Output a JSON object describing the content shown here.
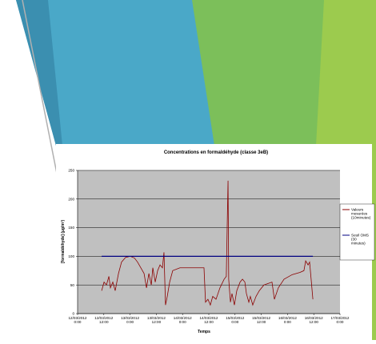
{
  "chart_data": {
    "type": "line",
    "title": "Concentrations en formaldéhyde (classe 3eB)",
    "x_label": "Temps",
    "y_label": "[formaldéhyde] (µg/m³)",
    "xlim": [
      0,
      120
    ],
    "xticks": [
      {
        "value": 0,
        "label": "12/03/2012 0:00"
      },
      {
        "value": 12,
        "label": "12/03/2012 12:00"
      },
      {
        "value": 24,
        "label": "13/03/2012 0:00"
      },
      {
        "value": 36,
        "label": "13/03/2012 12:00"
      },
      {
        "value": 48,
        "label": "14/03/2012 0:00"
      },
      {
        "value": 60,
        "label": "14/03/2012 12:00"
      },
      {
        "value": 72,
        "label": "15/03/2012 0:00"
      },
      {
        "value": 84,
        "label": "15/03/2012 12:00"
      },
      {
        "value": 96,
        "label": "16/03/2012 0:00"
      },
      {
        "value": 108,
        "label": "16/03/2012 12:00"
      },
      {
        "value": 120,
        "label": "17/03/2012 0:00"
      }
    ],
    "ylim": [
      0,
      250
    ],
    "yticks": [
      0,
      50,
      100,
      150,
      200,
      250
    ],
    "grid": true,
    "legend": "right",
    "series": [
      {
        "name": "Valeurs mesurées (10minutes)",
        "color": "#8b0000",
        "x": [
          11,
          12.1,
          13.2,
          14.3,
          15,
          16.1,
          17.2,
          18.7,
          20.1,
          21.9,
          24.1,
          26,
          27.4,
          28.9,
          30.4,
          31.5,
          32.6,
          33.7,
          34.4,
          35.5,
          36.6,
          37.7,
          38.8,
          39.5,
          40.2,
          41,
          42.1,
          43.5,
          46.8,
          52.3,
          57.8,
          58.5,
          59.6,
          60.7,
          61.8,
          63.3,
          65.1,
          67,
          68,
          68.4,
          68.8,
          69.1,
          69.9,
          70.6,
          71.7,
          72.8,
          74.3,
          75.4,
          76.5,
          77.2,
          78.3,
          79,
          80.1,
          81.6,
          83.1,
          85.2,
          88.9,
          90,
          91.8,
          94.4,
          98.1,
          101.7,
          103.5,
          104.3,
          105.4,
          106.1,
          106.8,
          107.6
        ],
        "values": [
          40,
          55,
          50,
          65,
          45,
          55,
          40,
          70,
          90,
          98,
          100,
          97,
          90,
          80,
          70,
          45,
          70,
          50,
          80,
          55,
          75,
          85,
          80,
          107,
          15,
          30,
          55,
          75,
          80,
          80,
          80,
          20,
          25,
          15,
          30,
          25,
          45,
          60,
          65,
          150,
          232,
          60,
          20,
          35,
          15,
          40,
          55,
          60,
          55,
          35,
          20,
          30,
          15,
          30,
          40,
          50,
          55,
          25,
          45,
          60,
          68,
          72,
          75,
          92,
          85,
          90,
          60,
          25
        ]
      },
      {
        "name": "Seuil OMS (30 minutes)",
        "color": "#000080",
        "x": [
          11,
          107.6
        ],
        "values": [
          100,
          100
        ]
      }
    ]
  }
}
